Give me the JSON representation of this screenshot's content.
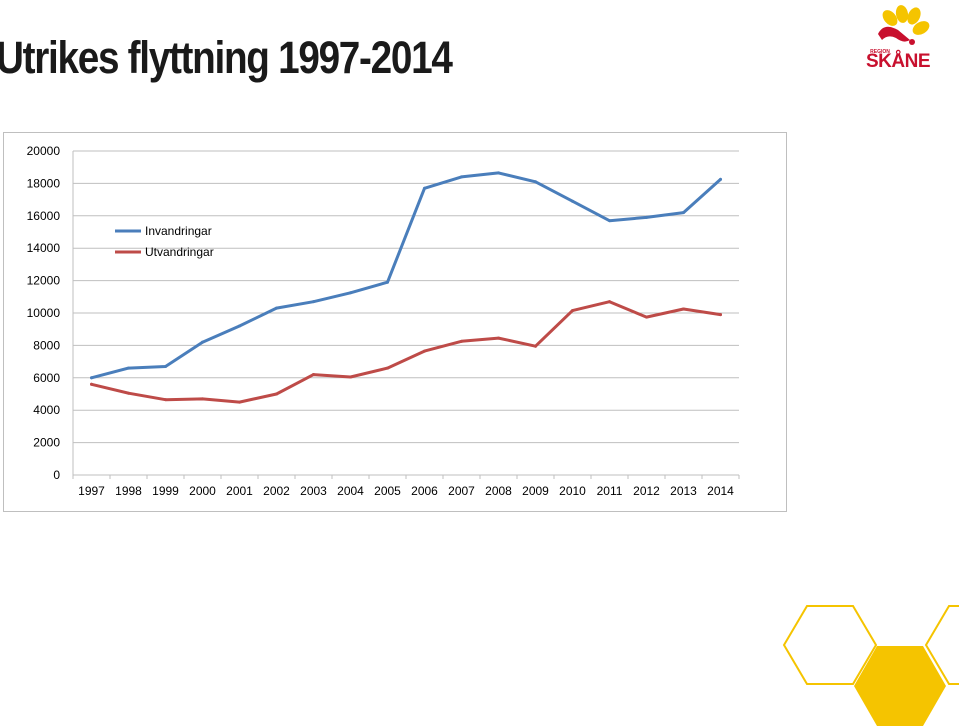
{
  "slide": {
    "title": "Utrikes flyttning 1997-2014"
  },
  "logo": {
    "small_text": "REGION",
    "word": "SKÅNE",
    "colors": {
      "flower": "#f5c400",
      "text": "#c8102e"
    }
  },
  "chart_data": {
    "type": "line",
    "title": "",
    "xlabel": "",
    "ylabel": "",
    "x": [
      "1997",
      "1998",
      "1999",
      "2000",
      "2001",
      "2002",
      "2003",
      "2004",
      "2005",
      "2006",
      "2007",
      "2008",
      "2009",
      "2010",
      "2011",
      "2012",
      "2013",
      "2014"
    ],
    "ylim": [
      0,
      20000
    ],
    "yticks": [
      "0",
      "2000",
      "4000",
      "6000",
      "8000",
      "10000",
      "12000",
      "14000",
      "16000",
      "18000",
      "20000"
    ],
    "grid": true,
    "legend": "top-left",
    "series": [
      {
        "name": "Invandringar",
        "color": "#4a7ebb",
        "values": [
          6000,
          6600,
          6700,
          8200,
          9200,
          10300,
          10700,
          11250,
          11900,
          17700,
          18400,
          18650,
          18100,
          16900,
          15700,
          15900,
          16200,
          18250
        ]
      },
      {
        "name": "Utvandringar",
        "color": "#be4b48",
        "values": [
          5600,
          5050,
          4650,
          4700,
          4500,
          5000,
          6200,
          6050,
          6600,
          7650,
          8250,
          8450,
          7950,
          10150,
          10700,
          9750,
          10250,
          9900
        ]
      }
    ]
  },
  "decor": {
    "hexagon_outline_color": "#f5c400",
    "hexagon_fill_color": "#f5c400"
  }
}
